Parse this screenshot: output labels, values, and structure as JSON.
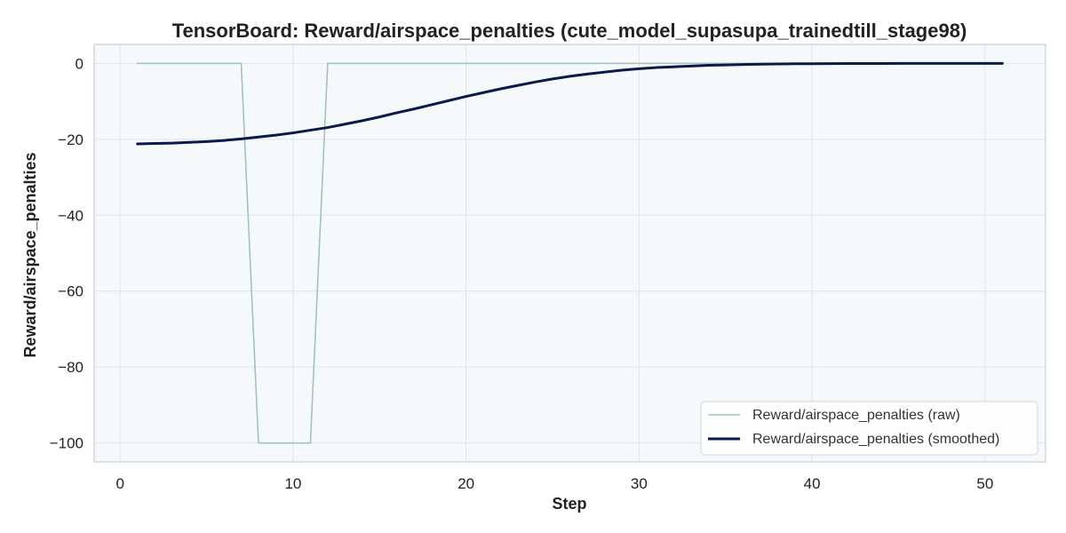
{
  "chart_data": {
    "type": "line",
    "title": "TensorBoard: Reward/airspace_penalties (cute_model_supasupa_trainedtill_stage98)",
    "xlabel": "Step",
    "ylabel": "Reward/airspace_penalties",
    "xlim": [
      -1.5,
      53.5
    ],
    "ylim": [
      -105,
      5
    ],
    "x_ticks": [
      0,
      10,
      20,
      30,
      40,
      50
    ],
    "y_ticks": [
      0,
      -20,
      -40,
      -60,
      -80,
      -100
    ],
    "grid": true,
    "legend_position": "bottom-right",
    "colors": {
      "plot_background": "#f5f9fc",
      "grid": "#dfe6ec",
      "raw": "#a7c1bb",
      "smoothed": "#0b1a4a",
      "axis": "#c9cfd4",
      "text": "#222222"
    },
    "series": [
      {
        "name": "Reward/airspace_penalties (raw)",
        "x": [
          1,
          2,
          3,
          4,
          5,
          6,
          7,
          8,
          9,
          10,
          11,
          12,
          13,
          14,
          15,
          16,
          17,
          18,
          19,
          20,
          21,
          22,
          23,
          24,
          25,
          26,
          27,
          28,
          29,
          30,
          31,
          32,
          33,
          34,
          35,
          36,
          37,
          38,
          39,
          40,
          41,
          42,
          43,
          44,
          45,
          46,
          47,
          48,
          49,
          50,
          51
        ],
        "y": [
          0,
          0,
          0,
          0,
          0,
          0,
          0,
          -100,
          -100,
          -100,
          -100,
          0,
          0,
          0,
          0,
          0,
          0,
          0,
          0,
          0,
          0,
          0,
          0,
          0,
          0,
          0,
          0,
          0,
          0,
          0,
          0,
          0,
          0,
          0,
          0,
          0,
          0,
          0,
          0,
          0,
          0,
          0,
          0,
          0,
          0,
          0,
          0,
          0,
          0,
          0,
          0
        ]
      },
      {
        "name": "Reward/airspace_penalties (smoothed)",
        "x": [
          1,
          2,
          3,
          4,
          5,
          6,
          7,
          8,
          9,
          10,
          11,
          12,
          13,
          14,
          15,
          16,
          17,
          18,
          19,
          20,
          21,
          22,
          23,
          24,
          25,
          26,
          27,
          28,
          29,
          30,
          31,
          32,
          33,
          34,
          35,
          36,
          37,
          38,
          39,
          40,
          41,
          42,
          43,
          44,
          45,
          46,
          47,
          48,
          49,
          50,
          51
        ],
        "y": [
          -21.2,
          -21.1,
          -21.0,
          -20.8,
          -20.6,
          -20.3,
          -19.9,
          -19.4,
          -18.9,
          -18.3,
          -17.6,
          -16.9,
          -16.0,
          -15.1,
          -14.1,
          -13.0,
          -12.0,
          -10.9,
          -9.8,
          -8.7,
          -7.7,
          -6.7,
          -5.8,
          -4.9,
          -4.1,
          -3.4,
          -2.8,
          -2.3,
          -1.8,
          -1.4,
          -1.1,
          -0.9,
          -0.7,
          -0.5,
          -0.4,
          -0.3,
          -0.2,
          -0.15,
          -0.1,
          -0.08,
          -0.06,
          -0.04,
          -0.03,
          -0.02,
          -0.015,
          -0.01,
          -0.008,
          -0.005,
          -0.003,
          -0.002,
          -0.001
        ]
      }
    ]
  }
}
